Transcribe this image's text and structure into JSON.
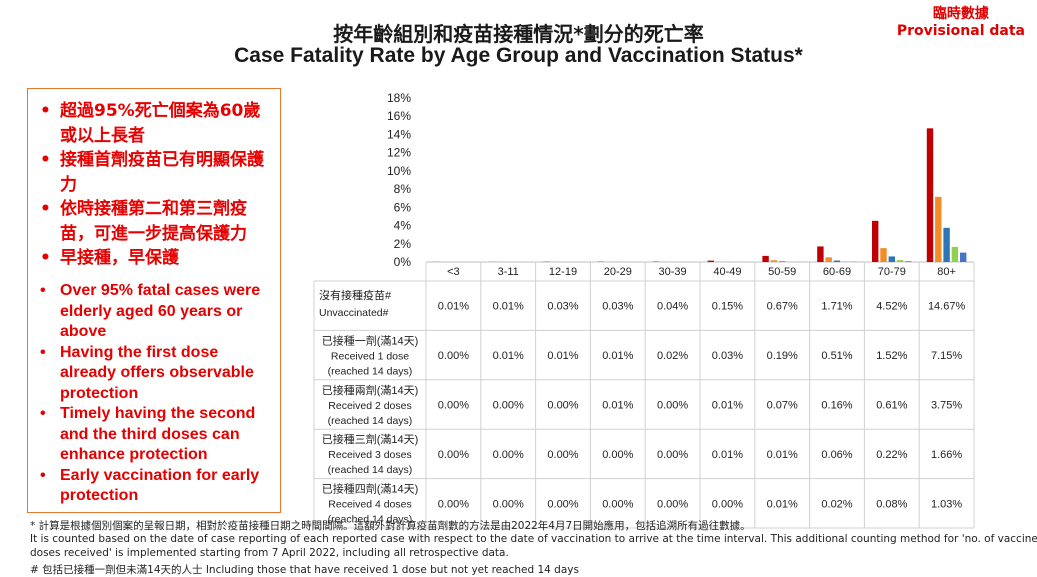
{
  "header": {
    "title_zh": "按年齡組別和疫苗接種情況*劃分的死亡率",
    "title_en": "Case Fatality Rate by Age Group and Vaccination Status*",
    "provisional_zh": "臨時數據",
    "provisional_en": "Provisional data"
  },
  "key_points": {
    "zh": [
      "超過95%死亡個案為60歲或以上長者",
      "接種首劑疫苗已有明顯保護力",
      "依時接種第二和第三劑疫苗，可進一步提高保護力",
      "早接種，早保護"
    ],
    "en": [
      "Over 95% fatal cases were elderly aged 60 years or above",
      "Having the first dose already offers observable protection",
      "Timely having the second and the third doses can enhance protection",
      "Early vaccination for early protection"
    ]
  },
  "chart_data": {
    "type": "bar",
    "categories": [
      "<3",
      "3-11",
      "12-19",
      "20-29",
      "30-39",
      "40-49",
      "50-59",
      "60-69",
      "70-79",
      "80+"
    ],
    "ylim": [
      0,
      18
    ],
    "yticks": [
      "0%",
      "2%",
      "4%",
      "6%",
      "8%",
      "10%",
      "12%",
      "14%",
      "16%",
      "18%"
    ],
    "series": [
      {
        "name_zh": "沒有接種疫苗#",
        "name_en": "Unvaccinated#",
        "color": "#c00000",
        "values": [
          0.01,
          0.01,
          0.03,
          0.03,
          0.04,
          0.15,
          0.67,
          1.71,
          4.52,
          14.67
        ],
        "labels": [
          "0.01%",
          "0.01%",
          "0.03%",
          "0.03%",
          "0.04%",
          "0.15%",
          "0.67%",
          "1.71%",
          "4.52%",
          "14.67%"
        ]
      },
      {
        "name_zh": "已接種一劑(滿14天)",
        "name_en": "Received 1 dose",
        "name_note": "(reached 14 days)",
        "color": "#f28c28",
        "values": [
          0.0,
          0.01,
          0.01,
          0.01,
          0.02,
          0.03,
          0.19,
          0.51,
          1.52,
          7.15
        ],
        "labels": [
          "0.00%",
          "0.01%",
          "0.01%",
          "0.01%",
          "0.02%",
          "0.03%",
          "0.19%",
          "0.51%",
          "1.52%",
          "7.15%"
        ]
      },
      {
        "name_zh": "已接種兩劑(滿14天)",
        "name_en": "Received 2 doses",
        "name_note": "(reached 14 days)",
        "color": "#2e75b6",
        "values": [
          0.0,
          0.0,
          0.0,
          0.01,
          0.0,
          0.01,
          0.07,
          0.16,
          0.61,
          3.75
        ],
        "labels": [
          "0.00%",
          "0.00%",
          "0.00%",
          "0.01%",
          "0.00%",
          "0.01%",
          "0.07%",
          "0.16%",
          "0.61%",
          "3.75%"
        ]
      },
      {
        "name_zh": "已接種三劑(滿14天)",
        "name_en": "Received 3 doses",
        "name_note": "(reached 14 days)",
        "color": "#92d050",
        "values": [
          0.0,
          0.0,
          0.0,
          0.0,
          0.0,
          0.01,
          0.01,
          0.06,
          0.22,
          1.66
        ],
        "labels": [
          "0.00%",
          "0.00%",
          "0.00%",
          "0.00%",
          "0.00%",
          "0.01%",
          "0.01%",
          "0.06%",
          "0.22%",
          "1.66%"
        ]
      },
      {
        "name_zh": "已接種四劑(滿14天)",
        "name_en": "Received 4 doses",
        "name_note": "(reached 14 days)",
        "color": "#4472c4",
        "values": [
          0.0,
          0.0,
          0.0,
          0.0,
          0.0,
          0.0,
          0.01,
          0.02,
          0.08,
          1.03
        ],
        "labels": [
          "0.00%",
          "0.00%",
          "0.00%",
          "0.00%",
          "0.00%",
          "0.00%",
          "0.01%",
          "0.02%",
          "0.08%",
          "1.03%"
        ]
      }
    ]
  },
  "footnotes": [
    "* 計算是根據個別個案的呈報日期，相對於疫苗接種日期之時間間隔。這額外對計算疫苗劑數的方法是由2022年4月7日開始應用，包括追溯所有過往數據。",
    "It is counted based on the date of case reporting of each reported case with respect to the date of vaccination to arrive at the time interval. This additional counting method for 'no. of vaccine",
    "doses received' is implemented starting from 7 April 2022, including all retrospective data.",
    "# 包括已接種一劑但未滿14天的人士 Including those that have received 1 dose but not yet reached 14 days"
  ]
}
